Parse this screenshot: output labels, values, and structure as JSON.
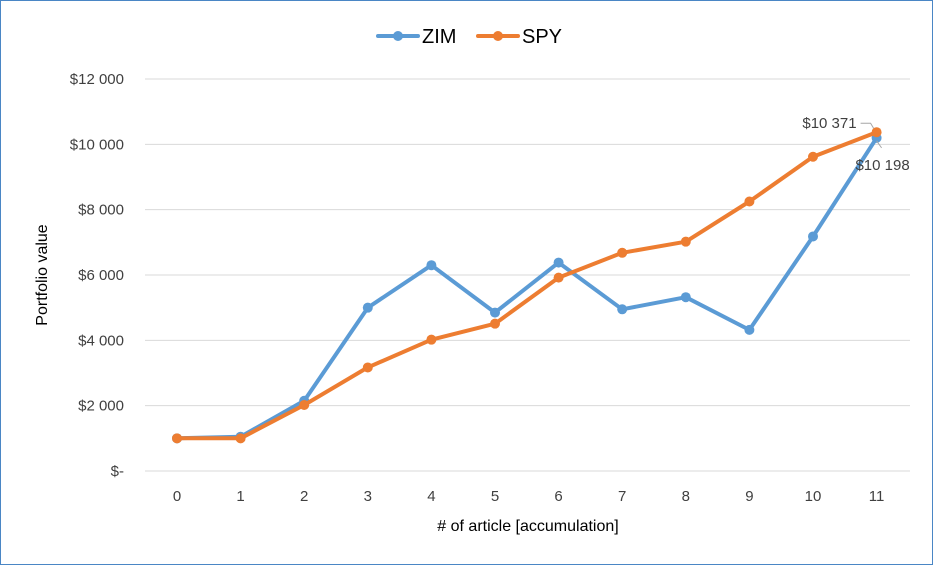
{
  "chart_data": {
    "type": "line",
    "title": "",
    "xlabel": "# of article [accumulation]",
    "ylabel": "Portfolio value",
    "x": [
      0,
      1,
      2,
      3,
      4,
      5,
      6,
      7,
      8,
      9,
      10,
      11
    ],
    "x_tick_labels": [
      "0",
      "1",
      "2",
      "3",
      "4",
      "5",
      "6",
      "7",
      "8",
      "9",
      "10",
      "11"
    ],
    "ylim": [
      0,
      12000
    ],
    "y_ticks": [
      0,
      2000,
      4000,
      6000,
      8000,
      10000,
      12000
    ],
    "y_tick_labels": [
      "$-",
      "$2 000",
      "$4 000",
      "$6 000",
      "$8 000",
      "$10 000",
      "$12 000"
    ],
    "grid": true,
    "legend_position": "top-center",
    "series": [
      {
        "name": "ZIM",
        "color": "#5b9bd5",
        "values": [
          1000,
          1050,
          2150,
          5000,
          6300,
          4850,
          6380,
          4950,
          5320,
          4320,
          7180,
          10198
        ]
      },
      {
        "name": "SPY",
        "color": "#ed7d31",
        "values": [
          1000,
          1000,
          2020,
          3170,
          4020,
          4510,
          5920,
          6680,
          7020,
          8250,
          9620,
          10371
        ]
      }
    ],
    "annotations": [
      {
        "series": "SPY",
        "index": 11,
        "text": "$10 371"
      },
      {
        "series": "ZIM",
        "index": 11,
        "text": "$10 198"
      }
    ]
  }
}
